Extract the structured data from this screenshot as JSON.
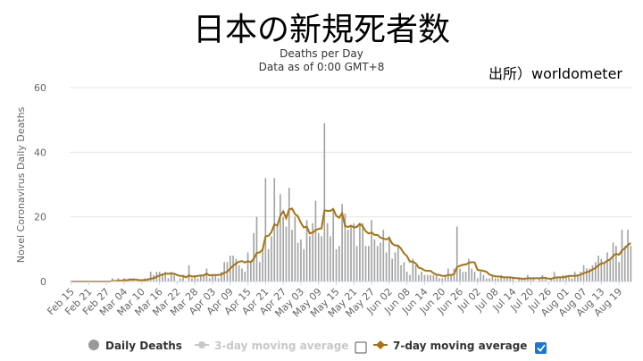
{
  "title": "日本の新規死者数",
  "subtitle_line1": "Deaths per Day",
  "subtitle_line2": "Data as of 0:00 GMT+8",
  "source": "出所）worldometer",
  "colors": {
    "bar": "#a3a3a3",
    "line": "#a87310",
    "muted": "#c8c8c8",
    "checkbox": "#1976d2"
  },
  "chart_data": {
    "type": "bar",
    "ylabel": "Novel Coronavirus Daily Deaths",
    "ylim": [
      0,
      60
    ],
    "yticks": [
      0,
      20,
      40,
      60
    ],
    "start_date": "Feb 15",
    "xtick_labels": [
      "Feb 15",
      "Feb 21",
      "Feb 27",
      "Mar 04",
      "Mar 10",
      "Mar 16",
      "Mar 22",
      "Mar 28",
      "Apr 03",
      "Apr 09",
      "Apr 15",
      "Apr 21",
      "Apr 27",
      "May 03",
      "May 09",
      "May 15",
      "May 21",
      "May 27",
      "Jun 02",
      "Jun 08",
      "Jun 14",
      "Jun 20",
      "Jun 26",
      "Jul 02",
      "Jul 08",
      "Jul 14",
      "Jul 20",
      "Jul 26",
      "Aug 01",
      "Aug 07",
      "Aug 13",
      "Aug 19"
    ],
    "grid": true,
    "legend_position": "bottom",
    "series": [
      {
        "name": "Daily Deaths",
        "values": [
          0,
          0,
          0,
          0,
          0,
          0,
          0,
          0,
          0,
          0,
          0,
          0,
          0,
          0,
          1,
          0,
          1,
          0,
          1,
          0,
          1,
          1,
          0,
          0,
          0,
          1,
          1,
          3,
          2,
          3,
          3,
          2,
          3,
          1,
          3,
          2,
          0,
          1,
          2,
          0,
          5,
          1,
          2,
          1,
          2,
          2,
          4,
          1,
          2,
          2,
          1,
          3,
          6,
          6,
          8,
          8,
          7,
          5,
          4,
          3,
          9,
          6,
          15,
          20,
          6,
          10,
          32,
          10,
          14,
          32,
          17,
          27,
          20,
          17,
          29,
          16,
          20,
          12,
          13,
          10,
          19,
          14,
          18,
          25,
          15,
          14,
          49,
          18,
          14,
          22,
          10,
          11,
          24,
          21,
          16,
          17,
          18,
          11,
          18,
          18,
          11,
          11,
          19,
          13,
          11,
          12,
          16,
          9,
          14,
          7,
          9,
          11,
          5,
          6,
          3,
          2,
          7,
          5,
          2,
          3,
          2,
          2,
          2,
          2,
          2,
          1,
          1,
          2,
          4,
          2,
          4,
          17,
          4,
          3,
          3,
          7,
          4,
          3,
          1,
          3,
          2,
          1,
          1,
          2,
          1,
          1,
          2,
          1,
          1,
          1,
          1,
          0,
          1,
          1,
          1,
          2,
          1,
          1,
          0,
          1,
          2,
          1,
          0,
          1,
          3,
          1,
          1,
          2,
          2,
          2,
          1,
          3,
          2,
          3,
          5,
          4,
          4,
          5,
          6,
          8,
          7,
          6,
          9,
          7,
          12,
          11,
          6,
          16,
          11,
          16,
          11
        ],
        "legend_label": "Daily Deaths"
      },
      {
        "name": "3-day moving average",
        "legend_label": "3-day moving average",
        "visible": false
      },
      {
        "name": "7-day moving average",
        "legend_label": "7-day moving average",
        "visible": true
      }
    ]
  }
}
